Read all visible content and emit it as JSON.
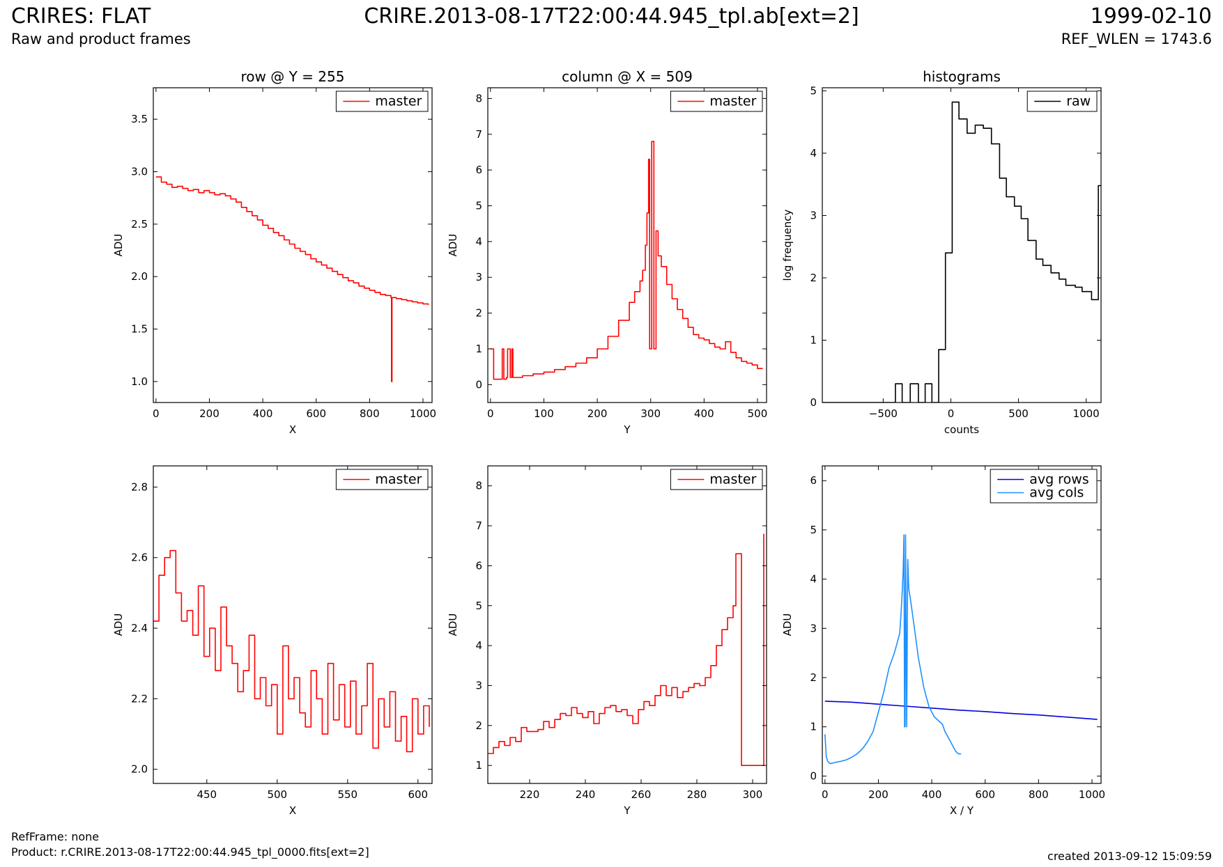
{
  "header": {
    "title": "CRIRES: FLAT",
    "subtitle": "Raw and product frames",
    "filename": "CRIRE.2013-08-17T22:00:44.945_tpl.ab[ext=2]",
    "date": "1999-02-10",
    "ref_wlen": "REF_WLEN = 1743.6"
  },
  "footer": {
    "ref_frame": "RefFrame: none",
    "product": "Product: r.CRIRE.2013-08-17T22:00:44.945_tpl_0000.fits[ext=2]",
    "created": "created 2013-09-12 15:09:59"
  },
  "colors": {
    "master": "#ff0000",
    "raw": "#000000",
    "avg_rows": "#0000dd",
    "avg_cols": "#1e90ff"
  },
  "chart_data": [
    {
      "id": "row-top",
      "type": "line",
      "title": "row @ Y = 255",
      "xlabel": "X",
      "ylabel": "ADU",
      "xlim": [
        -10,
        1034
      ],
      "ylim": [
        0.8,
        3.8
      ],
      "xticks": [
        0,
        200,
        400,
        600,
        800,
        1000
      ],
      "yticks": [
        1.0,
        1.5,
        2.0,
        2.5,
        3.0,
        3.5
      ],
      "legend_position": "top-right",
      "series": [
        {
          "name": "master",
          "color": "#ff0000",
          "step": true,
          "x": [
            0,
            20,
            40,
            60,
            80,
            100,
            120,
            140,
            160,
            180,
            200,
            220,
            240,
            260,
            280,
            300,
            320,
            340,
            360,
            380,
            400,
            420,
            440,
            460,
            480,
            500,
            520,
            540,
            560,
            580,
            600,
            620,
            640,
            660,
            680,
            700,
            720,
            740,
            760,
            780,
            800,
            820,
            840,
            860,
            880,
            882,
            884,
            900,
            920,
            940,
            960,
            980,
            1000,
            1020
          ],
          "y": [
            2.95,
            2.9,
            2.88,
            2.85,
            2.86,
            2.84,
            2.82,
            2.83,
            2.8,
            2.82,
            2.8,
            2.78,
            2.79,
            2.77,
            2.74,
            2.71,
            2.66,
            2.62,
            2.58,
            2.54,
            2.49,
            2.46,
            2.42,
            2.39,
            2.35,
            2.31,
            2.27,
            2.24,
            2.21,
            2.17,
            2.14,
            2.11,
            2.08,
            2.05,
            2.02,
            1.99,
            1.96,
            1.94,
            1.91,
            1.89,
            1.87,
            1.85,
            1.83,
            1.82,
            1.8,
            1.0,
            1.8,
            1.79,
            1.78,
            1.77,
            1.76,
            1.75,
            1.74,
            1.73
          ]
        }
      ]
    },
    {
      "id": "col-top",
      "type": "line",
      "title": "column @ X = 509",
      "xlabel": "Y",
      "ylabel": "ADU",
      "xlim": [
        -5,
        517
      ],
      "ylim": [
        -0.5,
        8.3
      ],
      "xticks": [
        0,
        100,
        200,
        300,
        400,
        500
      ],
      "yticks": [
        0,
        1,
        2,
        3,
        4,
        5,
        6,
        7,
        8
      ],
      "legend_position": "top-right",
      "series": [
        {
          "name": "master",
          "color": "#ff0000",
          "step": true,
          "x": [
            0,
            4,
            6,
            10,
            20,
            22,
            25,
            30,
            32,
            37,
            40,
            42,
            60,
            80,
            100,
            120,
            140,
            160,
            180,
            200,
            220,
            240,
            260,
            270,
            280,
            285,
            290,
            293,
            296,
            298,
            300,
            302,
            306,
            310,
            314,
            320,
            330,
            340,
            350,
            360,
            370,
            380,
            390,
            400,
            410,
            420,
            430,
            440,
            450,
            460,
            470,
            480,
            490,
            500,
            510
          ],
          "y": [
            1.0,
            1.0,
            0.15,
            0.15,
            0.15,
            1.0,
            0.15,
            0.2,
            1.0,
            0.2,
            1.0,
            0.2,
            0.25,
            0.3,
            0.35,
            0.42,
            0.5,
            0.6,
            0.75,
            1.0,
            1.35,
            1.8,
            2.3,
            2.6,
            2.9,
            3.2,
            3.9,
            4.8,
            6.3,
            1.0,
            1.0,
            6.8,
            1.0,
            4.3,
            3.6,
            3.3,
            2.8,
            2.4,
            2.1,
            1.85,
            1.6,
            1.4,
            1.3,
            1.25,
            1.15,
            1.05,
            1.0,
            1.2,
            0.9,
            0.75,
            0.65,
            0.6,
            0.55,
            0.45,
            0.45
          ]
        }
      ]
    },
    {
      "id": "hist-top",
      "type": "line",
      "title": "histograms",
      "xlabel": "counts",
      "ylabel": "log frequency",
      "xlim": [
        -950,
        1110
      ],
      "ylim": [
        0,
        5.05
      ],
      "xticks": [
        -500,
        0,
        500,
        1000
      ],
      "xtick_labels": [
        "−500",
        "0",
        "500",
        "1000"
      ],
      "yticks": [
        0,
        1,
        2,
        3,
        4,
        5
      ],
      "legend_position": "top-right",
      "series": [
        {
          "name": "raw",
          "color": "#000000",
          "step": true,
          "x": [
            -950,
            -520,
            -410,
            -360,
            -300,
            -240,
            -190,
            -140,
            -90,
            -40,
            10,
            60,
            120,
            180,
            240,
            300,
            360,
            410,
            470,
            520,
            570,
            630,
            680,
            740,
            800,
            850,
            920,
            970,
            1040,
            1090,
            1110
          ],
          "y": [
            0,
            0,
            0.3,
            0,
            0.3,
            0,
            0.3,
            0,
            0.85,
            2.4,
            4.82,
            4.55,
            4.32,
            4.45,
            4.4,
            4.15,
            3.6,
            3.3,
            3.15,
            2.95,
            2.6,
            2.3,
            2.2,
            2.08,
            1.98,
            1.88,
            1.85,
            1.78,
            1.65,
            3.48,
            3.48
          ]
        }
      ]
    },
    {
      "id": "row-bottom",
      "type": "line",
      "title": "",
      "xlabel": "X",
      "ylabel": "ADU",
      "xlim": [
        412,
        610
      ],
      "ylim": [
        1.96,
        2.86
      ],
      "xticks": [
        450,
        500,
        550,
        600
      ],
      "yticks": [
        2.0,
        2.2,
        2.4,
        2.6,
        2.8
      ],
      "legend_position": "top-right",
      "series": [
        {
          "name": "master",
          "color": "#ff0000",
          "step": true,
          "x": [
            412,
            416,
            420,
            424,
            428,
            432,
            436,
            440,
            444,
            448,
            452,
            456,
            460,
            464,
            468,
            472,
            476,
            480,
            484,
            488,
            492,
            496,
            500,
            504,
            508,
            512,
            516,
            520,
            524,
            528,
            532,
            536,
            540,
            544,
            548,
            552,
            556,
            560,
            564,
            568,
            572,
            576,
            580,
            584,
            588,
            592,
            596,
            600,
            604,
            608
          ],
          "y": [
            2.42,
            2.55,
            2.6,
            2.62,
            2.5,
            2.42,
            2.45,
            2.38,
            2.52,
            2.32,
            2.4,
            2.28,
            2.46,
            2.35,
            2.3,
            2.22,
            2.28,
            2.38,
            2.2,
            2.26,
            2.18,
            2.24,
            2.1,
            2.35,
            2.2,
            2.26,
            2.16,
            2.12,
            2.28,
            2.2,
            2.1,
            2.3,
            2.14,
            2.24,
            2.12,
            2.25,
            2.1,
            2.18,
            2.3,
            2.06,
            2.2,
            2.12,
            2.22,
            2.08,
            2.15,
            2.05,
            2.2,
            2.1,
            2.18,
            2.12
          ]
        }
      ]
    },
    {
      "id": "col-bottom",
      "type": "line",
      "title": "",
      "xlabel": "Y",
      "ylabel": "ADU",
      "xlim": [
        205,
        305
      ],
      "ylim": [
        0.55,
        8.5
      ],
      "xticks": [
        220,
        240,
        260,
        280,
        300
      ],
      "yticks": [
        1,
        2,
        3,
        4,
        5,
        6,
        7,
        8
      ],
      "legend_position": "top-right",
      "series": [
        {
          "name": "master",
          "color": "#ff0000",
          "step": true,
          "x": [
            205,
            207,
            209,
            211,
            213,
            215,
            217,
            219,
            221,
            223,
            225,
            227,
            229,
            231,
            233,
            235,
            237,
            239,
            241,
            243,
            245,
            247,
            249,
            251,
            253,
            255,
            257,
            259,
            261,
            263,
            265,
            267,
            269,
            271,
            273,
            275,
            277,
            279,
            281,
            283,
            285,
            287,
            289,
            291,
            293,
            294,
            295,
            296,
            300,
            303,
            304
          ],
          "y": [
            1.3,
            1.45,
            1.6,
            1.5,
            1.7,
            1.6,
            1.95,
            1.85,
            1.85,
            1.9,
            2.1,
            1.95,
            2.15,
            2.3,
            2.25,
            2.45,
            2.3,
            2.2,
            2.35,
            2.05,
            2.3,
            2.45,
            2.5,
            2.35,
            2.4,
            2.25,
            2.05,
            2.4,
            2.6,
            2.5,
            2.75,
            3.0,
            2.75,
            2.95,
            2.7,
            2.85,
            2.95,
            3.05,
            3.0,
            3.2,
            3.5,
            4.0,
            4.4,
            4.7,
            5.0,
            6.3,
            6.3,
            1.0,
            1.0,
            1.0,
            6.8
          ]
        }
      ]
    },
    {
      "id": "avg-bottom",
      "type": "line",
      "title": "",
      "xlabel": "X / Y",
      "ylabel": "ADU",
      "xlim": [
        -10,
        1034
      ],
      "ylim": [
        -0.15,
        6.3
      ],
      "xticks": [
        0,
        200,
        400,
        600,
        800,
        1000
      ],
      "yticks": [
        0,
        1,
        2,
        3,
        4,
        5,
        6
      ],
      "legend_position": "top-right",
      "series": [
        {
          "name": "avg rows",
          "color": "#0000dd",
          "step": false,
          "x": [
            0,
            100,
            200,
            300,
            400,
            500,
            600,
            700,
            800,
            900,
            1000,
            1020
          ],
          "y": [
            1.52,
            1.5,
            1.46,
            1.42,
            1.38,
            1.34,
            1.31,
            1.27,
            1.24,
            1.2,
            1.16,
            1.15
          ]
        },
        {
          "name": "avg cols",
          "color": "#1e90ff",
          "step": false,
          "x": [
            0,
            5,
            10,
            20,
            40,
            60,
            80,
            100,
            120,
            140,
            160,
            180,
            200,
            220,
            240,
            260,
            270,
            280,
            285,
            290,
            293,
            296,
            298,
            300,
            302,
            306,
            310,
            314,
            320,
            330,
            340,
            350,
            360,
            370,
            380,
            390,
            400,
            410,
            420,
            430,
            440,
            450,
            460,
            470,
            480,
            490,
            500,
            510
          ],
          "y": [
            0.85,
            0.4,
            0.3,
            0.25,
            0.28,
            0.3,
            0.33,
            0.38,
            0.45,
            0.55,
            0.7,
            0.9,
            1.3,
            1.7,
            2.2,
            2.5,
            2.7,
            2.9,
            3.3,
            3.8,
            4.2,
            4.9,
            1.0,
            1.0,
            4.9,
            1.0,
            4.4,
            3.8,
            3.6,
            3.2,
            2.8,
            2.4,
            2.1,
            1.8,
            1.6,
            1.4,
            1.3,
            1.2,
            1.15,
            1.1,
            1.05,
            0.9,
            0.8,
            0.7,
            0.6,
            0.5,
            0.45,
            0.45
          ]
        }
      ]
    }
  ]
}
